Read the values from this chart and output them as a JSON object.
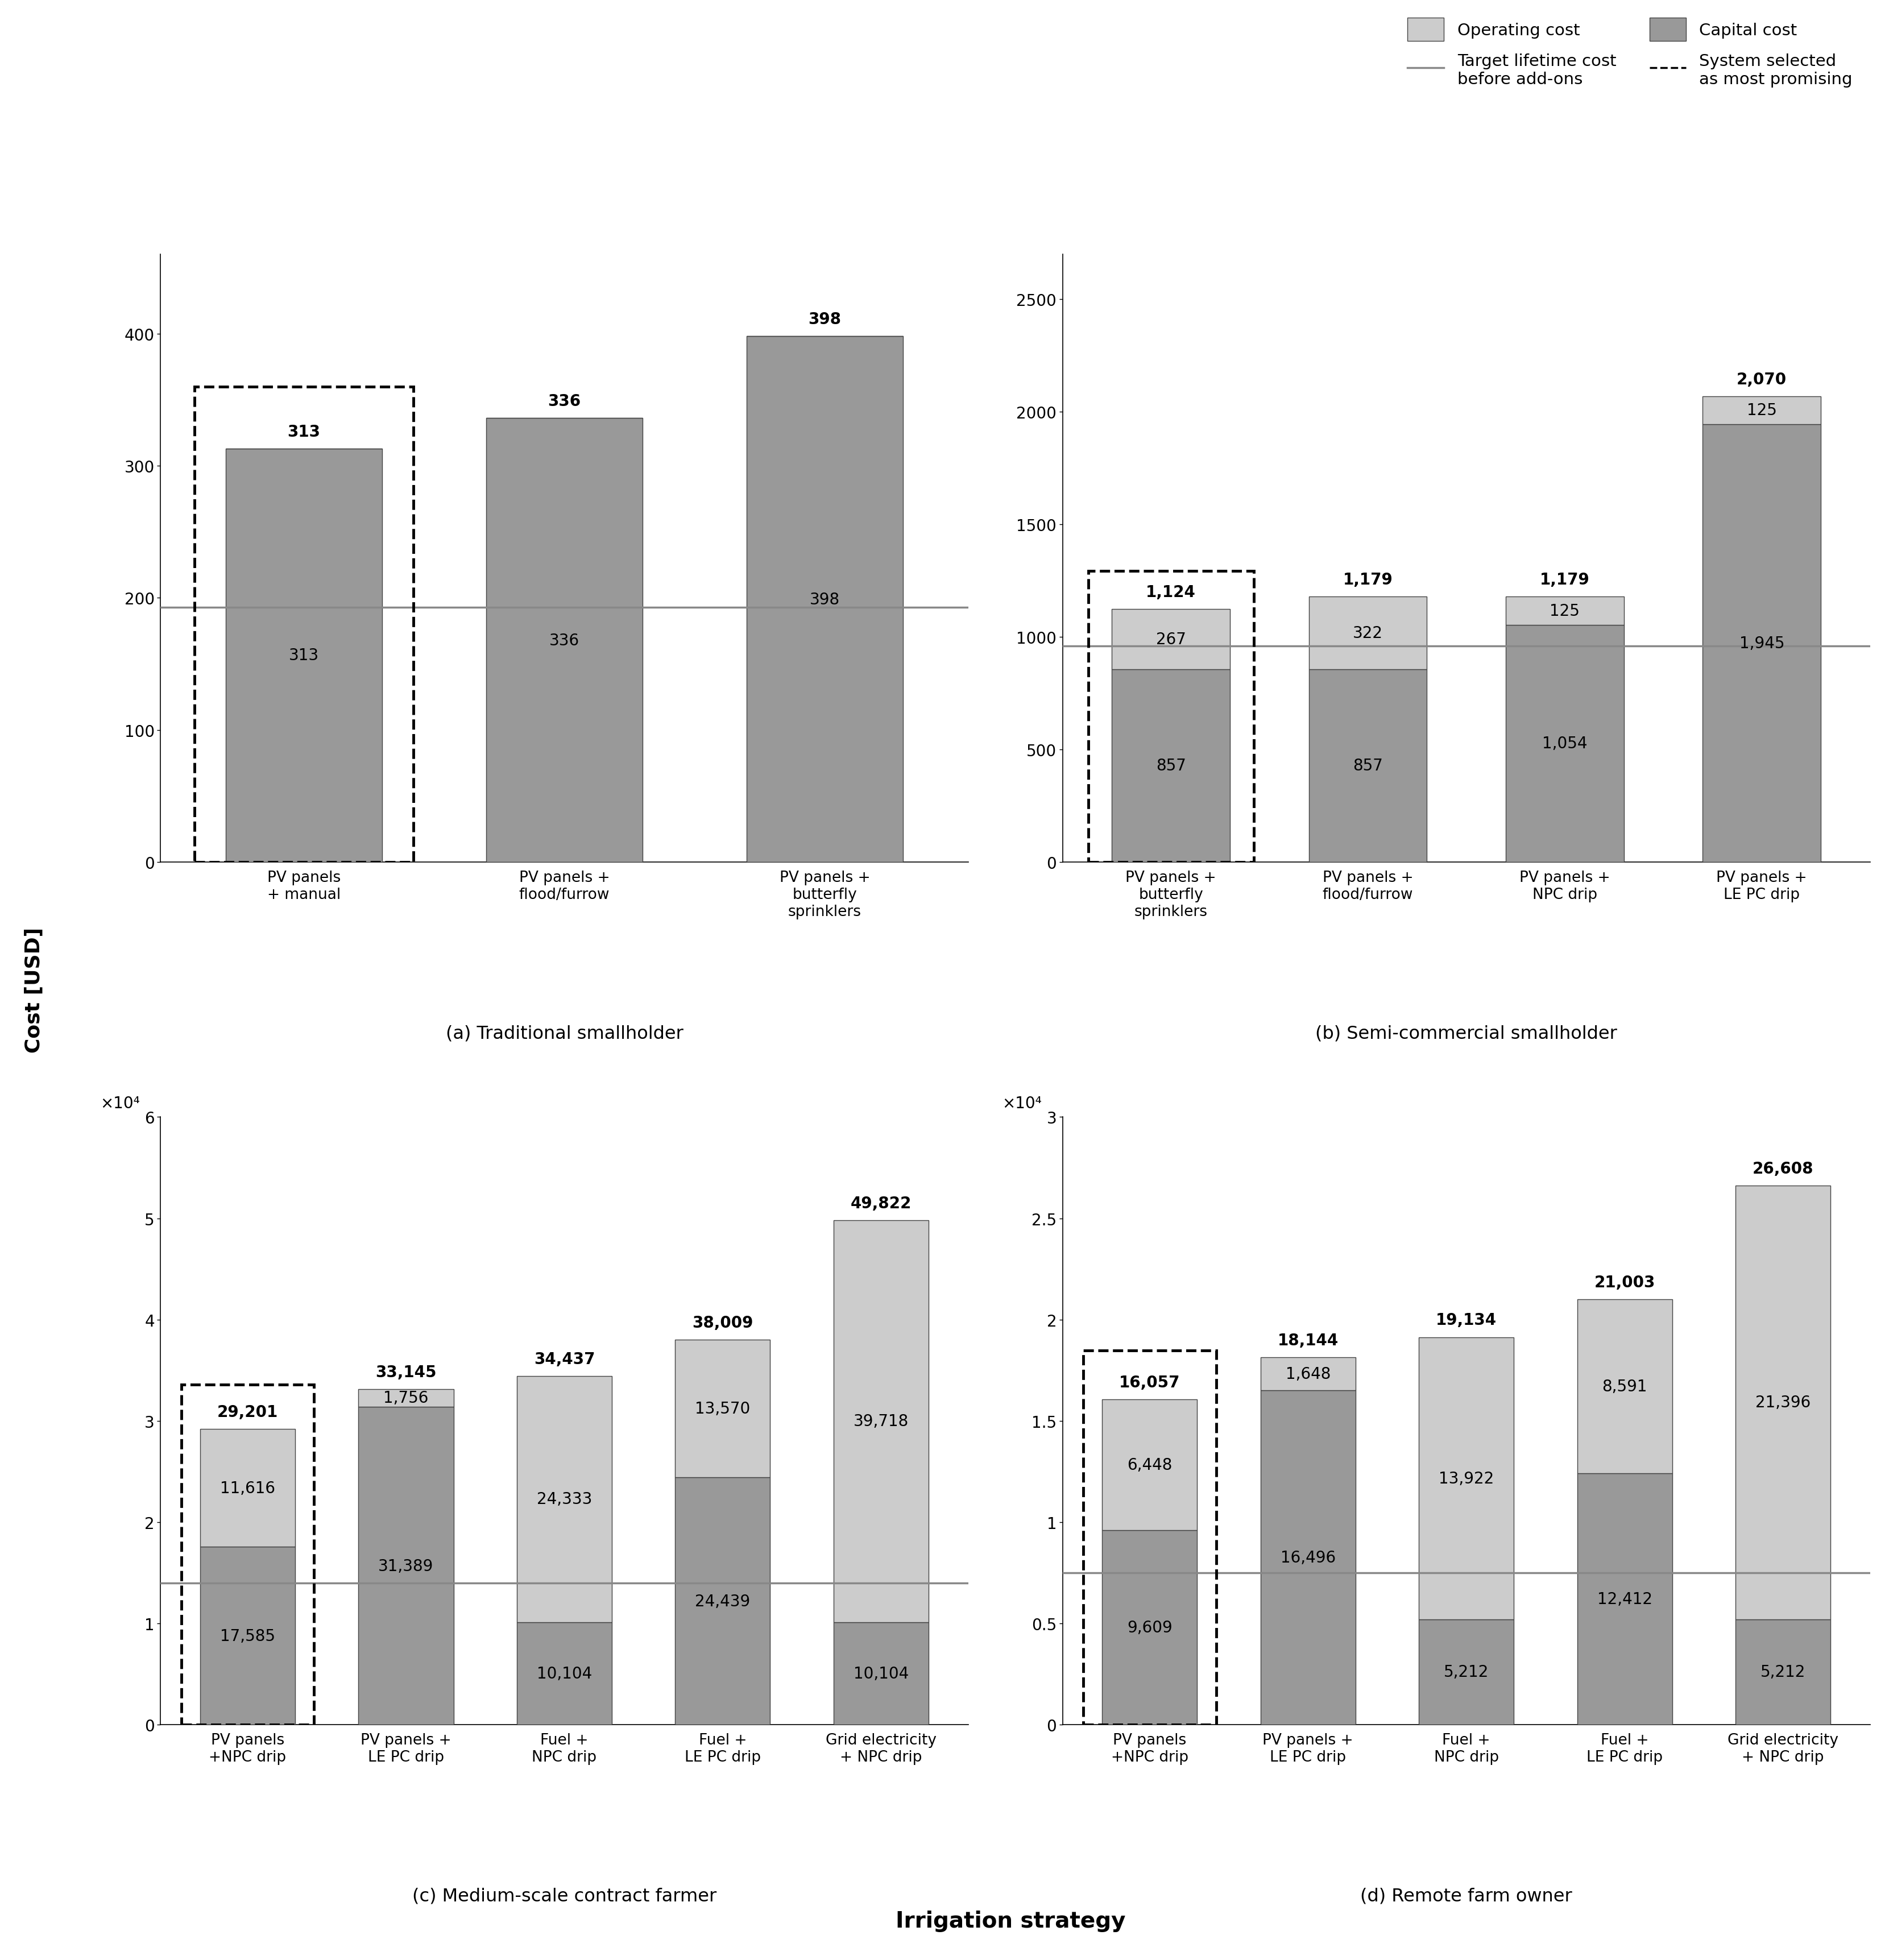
{
  "subplots": {
    "a": {
      "title": "(a) Traditional smallholder",
      "categories": [
        "PV panels\n+ manual",
        "PV panels +\nflood/furrow",
        "PV panels +\nbutterfly\nsprinklers"
      ],
      "capital": [
        313,
        336,
        398
      ],
      "operating": [
        0,
        0,
        0
      ],
      "totals": [
        313,
        336,
        398
      ],
      "target_line": 193,
      "ylim": [
        0,
        460
      ],
      "yticks": [
        0,
        100,
        200,
        300,
        400
      ],
      "selected": 0
    },
    "b": {
      "title": "(b) Semi-commercial smallholder",
      "categories": [
        "PV panels +\nbutterfly\nsprinklers",
        "PV panels +\nflood/furrow",
        "PV panels +\nNPC drip",
        "PV panels +\nLE PC drip"
      ],
      "capital": [
        857,
        857,
        1054,
        1945
      ],
      "operating": [
        267,
        322,
        125,
        125
      ],
      "totals": [
        1124,
        1179,
        1179,
        2070
      ],
      "target_line": 960,
      "ylim": [
        0,
        2700
      ],
      "yticks": [
        0,
        500,
        1000,
        1500,
        2000,
        2500
      ],
      "selected": 0
    },
    "c": {
      "title": "(c) Medium-scale contract farmer",
      "categories": [
        "PV panels\n+NPC drip",
        "PV panels +\nLE PC drip",
        "Fuel +\nNPC drip",
        "Fuel +\nLE PC drip",
        "Grid electricity\n+ NPC drip"
      ],
      "capital": [
        17585,
        31389,
        10104,
        24439,
        10104
      ],
      "operating": [
        11616,
        1756,
        24333,
        13570,
        39718
      ],
      "totals": [
        29201,
        33145,
        34437,
        38009,
        49822
      ],
      "target_line": 14000,
      "ylim": [
        0,
        60000
      ],
      "yticks": [
        0,
        10000,
        20000,
        30000,
        40000,
        50000,
        60000
      ],
      "ytick_labels": [
        "0",
        "1",
        "2",
        "3",
        "4",
        "5",
        "6"
      ],
      "sci_label": "×10⁴",
      "selected": 0
    },
    "d": {
      "title": "(d) Remote farm owner",
      "categories": [
        "PV panels\n+NPC drip",
        "PV panels +\nLE PC drip",
        "Fuel +\nNPC drip",
        "Fuel +\nLE PC drip",
        "Grid electricity\n+ NPC drip"
      ],
      "capital": [
        9609,
        16496,
        5212,
        12412,
        5212
      ],
      "operating": [
        6448,
        1648,
        13922,
        8591,
        21396
      ],
      "totals": [
        16057,
        18144,
        19134,
        21003,
        26608
      ],
      "target_line": 7500,
      "ylim": [
        0,
        30000
      ],
      "yticks": [
        0,
        5000,
        10000,
        15000,
        20000,
        25000,
        30000
      ],
      "ytick_labels": [
        "0",
        "0.5",
        "1",
        "1.5",
        "2",
        "2.5",
        "3"
      ],
      "sci_label": "×10⁴",
      "selected": 0
    }
  },
  "colors": {
    "capital": "#999999",
    "operating": "#cccccc",
    "target_line": "#888888",
    "dashed_box": "#000000",
    "bar_edge": "#444444"
  },
  "ylabel": "Cost [USD]",
  "xlabel": "Irrigation strategy",
  "legend": {
    "operating_label": "Operating cost",
    "capital_label": "Capital cost",
    "target_line_label": "Target lifetime cost\nbefore add-ons",
    "dashed_label": "System selected\nas most promising"
  }
}
